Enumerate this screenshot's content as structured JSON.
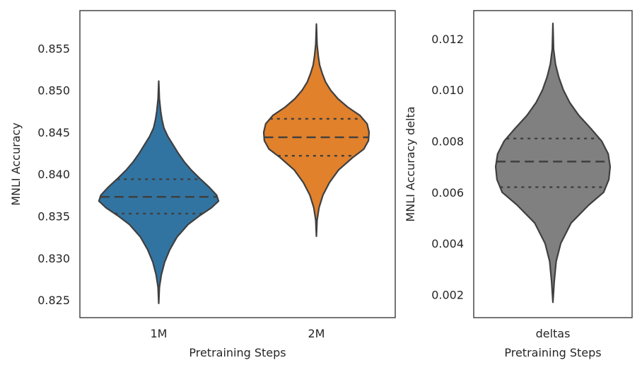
{
  "chart_data": [
    {
      "type": "violin",
      "xlabel": "Pretraining Steps",
      "ylabel": "MNLI Accuracy",
      "ylim": [
        0.8229,
        0.8595
      ],
      "yticks": [
        "0.825",
        "0.830",
        "0.835",
        "0.840",
        "0.845",
        "0.850",
        "0.855"
      ],
      "categories": [
        "1M",
        "2M"
      ],
      "colors": [
        "#3274a1",
        "#e1812c"
      ],
      "grid": false,
      "series": [
        {
          "category": "1M",
          "min": 0.8246,
          "max": 0.8511,
          "q1": 0.8353,
          "median": 0.8373,
          "q3": 0.8394,
          "profile": [
            [
              0.8246,
              0.0
            ],
            [
              0.8265,
              0.01
            ],
            [
              0.828,
              0.04
            ],
            [
              0.8295,
              0.09
            ],
            [
              0.831,
              0.17
            ],
            [
              0.8325,
              0.28
            ],
            [
              0.834,
              0.45
            ],
            [
              0.835,
              0.62
            ],
            [
              0.836,
              0.81
            ],
            [
              0.8368,
              0.92
            ],
            [
              0.8375,
              0.89
            ],
            [
              0.8385,
              0.77
            ],
            [
              0.8395,
              0.63
            ],
            [
              0.8405,
              0.5
            ],
            [
              0.8415,
              0.39
            ],
            [
              0.8425,
              0.3
            ],
            [
              0.8435,
              0.22
            ],
            [
              0.8445,
              0.14
            ],
            [
              0.8455,
              0.08
            ],
            [
              0.8465,
              0.05
            ],
            [
              0.8475,
              0.03
            ],
            [
              0.849,
              0.01
            ],
            [
              0.8511,
              0.0
            ]
          ]
        },
        {
          "category": "2M",
          "min": 0.8326,
          "max": 0.8579,
          "q1": 0.8422,
          "median": 0.8444,
          "q3": 0.8466,
          "profile": [
            [
              0.8326,
              0.0
            ],
            [
              0.8345,
              0.01
            ],
            [
              0.836,
              0.04
            ],
            [
              0.8375,
              0.1
            ],
            [
              0.839,
              0.2
            ],
            [
              0.8405,
              0.34
            ],
            [
              0.842,
              0.56
            ],
            [
              0.843,
              0.73
            ],
            [
              0.844,
              0.8
            ],
            [
              0.845,
              0.81
            ],
            [
              0.846,
              0.78
            ],
            [
              0.847,
              0.67
            ],
            [
              0.848,
              0.48
            ],
            [
              0.849,
              0.33
            ],
            [
              0.85,
              0.22
            ],
            [
              0.851,
              0.14
            ],
            [
              0.852,
              0.09
            ],
            [
              0.853,
              0.05
            ],
            [
              0.854,
              0.03
            ],
            [
              0.8555,
              0.01
            ],
            [
              0.8579,
              0.0
            ]
          ]
        }
      ]
    },
    {
      "type": "violin",
      "xlabel": "Pretraining Steps",
      "ylabel": "MNLI Accuracy delta",
      "ylim": [
        0.0011,
        0.0131
      ],
      "yticks": [
        "0.002",
        "0.004",
        "0.006",
        "0.008",
        "0.010",
        "0.012"
      ],
      "categories": [
        "deltas"
      ],
      "colors": [
        "#808080"
      ],
      "grid": false,
      "series": [
        {
          "category": "deltas",
          "min": 0.0017,
          "max": 0.0126,
          "q1": 0.0062,
          "median": 0.0072,
          "q3": 0.0081,
          "profile": [
            [
              0.0017,
              0.0
            ],
            [
              0.0025,
              0.02
            ],
            [
              0.0033,
              0.05
            ],
            [
              0.004,
              0.12
            ],
            [
              0.0048,
              0.28
            ],
            [
              0.0055,
              0.55
            ],
            [
              0.006,
              0.78
            ],
            [
              0.0065,
              0.86
            ],
            [
              0.007,
              0.88
            ],
            [
              0.0075,
              0.85
            ],
            [
              0.008,
              0.75
            ],
            [
              0.0085,
              0.58
            ],
            [
              0.009,
              0.4
            ],
            [
              0.0095,
              0.26
            ],
            [
              0.01,
              0.16
            ],
            [
              0.0105,
              0.09
            ],
            [
              0.011,
              0.04
            ],
            [
              0.0116,
              0.01
            ],
            [
              0.0126,
              0.0
            ]
          ]
        }
      ]
    }
  ]
}
